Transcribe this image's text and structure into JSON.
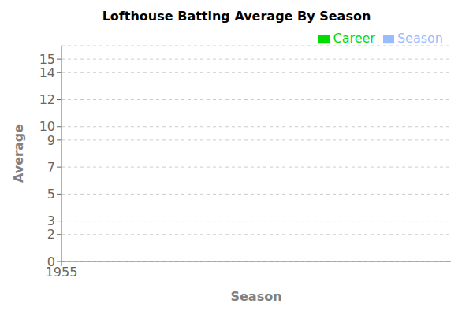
{
  "chart_data": {
    "type": "bar",
    "title": "Lofthouse Batting Average By Season",
    "xlabel": "Season",
    "ylabel": "Average",
    "x": [],
    "series": [
      {
        "name": "Season",
        "color": "#99bbff",
        "values": []
      },
      {
        "name": "Career",
        "color": "#00dd00",
        "values": []
      }
    ],
    "xlim": [
      1955,
      1956
    ],
    "xticks": [
      1955
    ],
    "ylim": [
      0,
      16
    ],
    "yticks": [
      0,
      2,
      3,
      5,
      7,
      9,
      10,
      12,
      14,
      15
    ],
    "grid": true,
    "legend": "upper right"
  }
}
